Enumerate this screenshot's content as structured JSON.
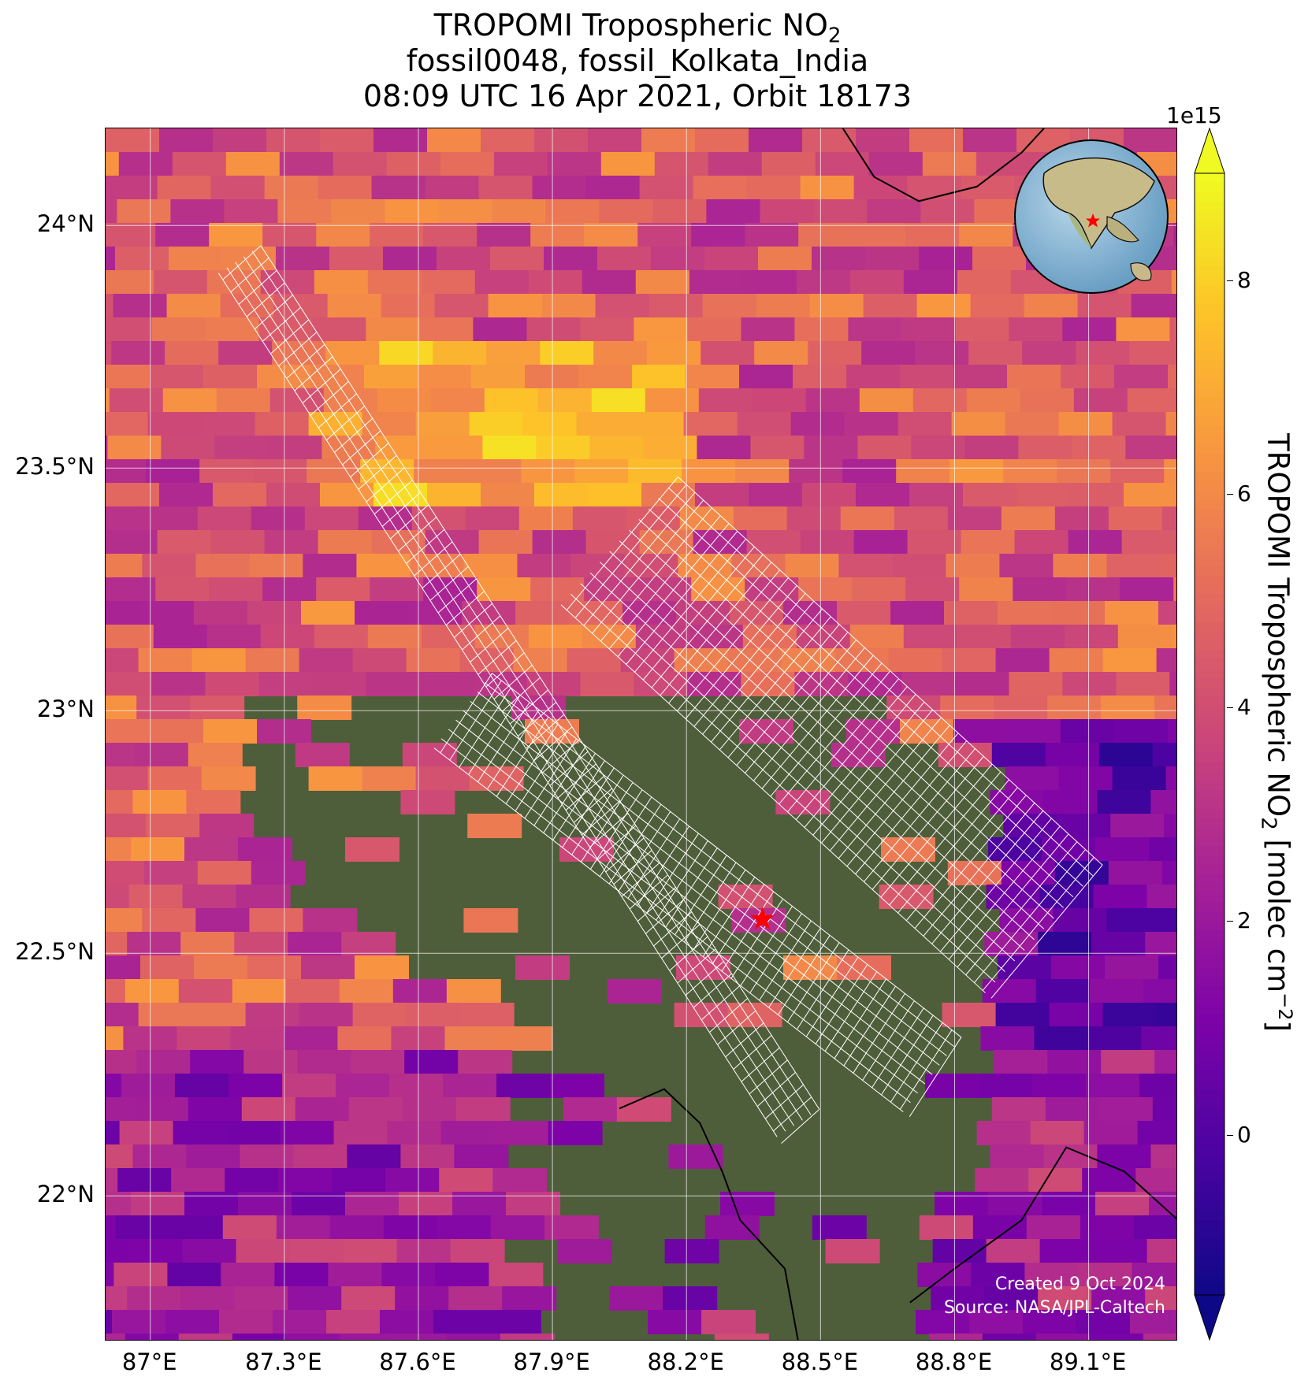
{
  "title": {
    "line1_prefix": "TROPOMI Tropospheric NO",
    "line1_sub": "2",
    "line2": "fossil0048, fossil_Kolkata_India",
    "line3": "08:09 UTC 16 Apr 2021, Orbit 18173"
  },
  "map": {
    "extent_lon": [
      86.9,
      89.3
    ],
    "extent_lat": [
      21.7,
      24.2
    ],
    "x_ticks": [
      "87°E",
      "87.3°E",
      "87.6°E",
      "87.9°E",
      "88.2°E",
      "88.5°E",
      "88.8°E",
      "89.1°E"
    ],
    "x_tick_values": [
      87.0,
      87.3,
      87.6,
      87.9,
      88.2,
      88.5,
      88.8,
      89.1
    ],
    "y_ticks": [
      "24°N",
      "23.5°N",
      "23°N",
      "22.5°N",
      "22°N"
    ],
    "y_tick_values": [
      24.0,
      23.5,
      23.0,
      22.5,
      22.0
    ],
    "grid": true,
    "site_marker": {
      "lon": 88.37,
      "lat": 22.57,
      "color": "#ff0000",
      "icon": "red-star-icon"
    },
    "credit_line1": "Created 9 Oct 2024",
    "credit_line2": "Source: NASA/JPL-Caltech",
    "inset_globe": {
      "icon": "globe-icon",
      "marker_color": "#ff0000"
    }
  },
  "colorbar": {
    "exponent": "1e15",
    "label_prefix": "TROPOMI Tropospheric NO",
    "label_sub": "2",
    "label_suffix": " [molec cm",
    "label_sup": "−2",
    "label_end": "]",
    "min": -1.5,
    "max": 9.0,
    "ticks": [
      "0",
      "2",
      "4",
      "6",
      "8"
    ],
    "tick_values": [
      0,
      2,
      4,
      6,
      8
    ],
    "colormap": "plasma",
    "extend": "both"
  }
}
